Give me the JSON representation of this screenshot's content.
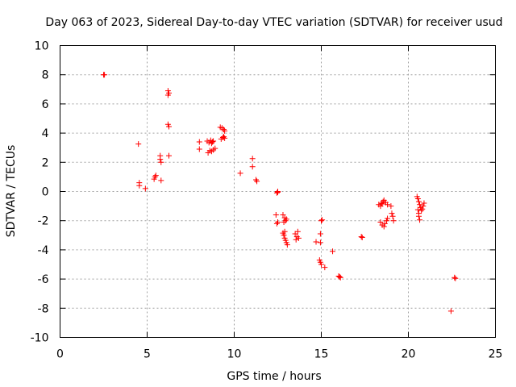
{
  "chart_data": {
    "type": "scatter",
    "title": "Day 063 of 2023, Sidereal Day-to-day VTEC variation (SDTVAR) for receiver usud",
    "xlabel": "GPS time / hours",
    "ylabel": "SDTVAR / TECUs",
    "xlim": [
      0,
      25
    ],
    "ylim": [
      -10,
      10
    ],
    "x_ticks": [
      0,
      5,
      10,
      15,
      20,
      25
    ],
    "y_ticks": [
      -10,
      -8,
      -6,
      -4,
      -2,
      0,
      2,
      4,
      6,
      8,
      10
    ],
    "x_tick_labels": [
      "0",
      "5",
      "10",
      "15",
      "20",
      "25"
    ],
    "y_tick_labels": [
      "-10",
      "-8",
      "-6",
      "-4",
      "-2",
      "0",
      "2",
      "4",
      "6",
      "8",
      "10"
    ],
    "grid": true,
    "marker": "plus",
    "series": [
      {
        "name": "SDTVAR",
        "color": "#ff0000",
        "points": [
          [
            2.5,
            8.0
          ],
          [
            2.55,
            8.0
          ],
          [
            4.5,
            3.25
          ],
          [
            4.55,
            0.6
          ],
          [
            4.55,
            0.4
          ],
          [
            4.9,
            0.2
          ],
          [
            5.4,
            0.85
          ],
          [
            5.45,
            1.0
          ],
          [
            5.5,
            1.1
          ],
          [
            5.75,
            2.45
          ],
          [
            5.75,
            2.2
          ],
          [
            5.8,
            2.0
          ],
          [
            5.8,
            0.75
          ],
          [
            6.2,
            6.9
          ],
          [
            6.2,
            6.6
          ],
          [
            6.25,
            6.75
          ],
          [
            6.2,
            4.6
          ],
          [
            6.25,
            4.45
          ],
          [
            6.25,
            2.45
          ],
          [
            8.0,
            3.4
          ],
          [
            8.0,
            2.9
          ],
          [
            8.45,
            3.45
          ],
          [
            8.55,
            3.35
          ],
          [
            8.65,
            3.5
          ],
          [
            8.7,
            3.3
          ],
          [
            8.75,
            3.4
          ],
          [
            8.8,
            3.45
          ],
          [
            8.5,
            2.65
          ],
          [
            8.6,
            2.8
          ],
          [
            8.7,
            2.75
          ],
          [
            8.8,
            2.85
          ],
          [
            8.9,
            2.95
          ],
          [
            9.2,
            4.4
          ],
          [
            9.3,
            4.35
          ],
          [
            9.4,
            4.25
          ],
          [
            9.45,
            4.15
          ],
          [
            9.25,
            3.6
          ],
          [
            9.35,
            3.7
          ],
          [
            9.4,
            3.75
          ],
          [
            9.45,
            3.65
          ],
          [
            10.35,
            1.25
          ],
          [
            11.05,
            2.25
          ],
          [
            11.05,
            1.7
          ],
          [
            11.25,
            0.8
          ],
          [
            11.3,
            0.7
          ],
          [
            12.45,
            -0.1
          ],
          [
            12.5,
            0.0
          ],
          [
            12.5,
            -0.05
          ],
          [
            12.4,
            -1.6
          ],
          [
            12.45,
            -2.2
          ],
          [
            12.5,
            -2.1
          ],
          [
            12.8,
            -1.6
          ],
          [
            12.9,
            -1.8
          ],
          [
            13.0,
            -1.9
          ],
          [
            12.85,
            -2.1
          ],
          [
            12.95,
            -2.0
          ],
          [
            12.8,
            -2.85
          ],
          [
            12.85,
            -3.0
          ],
          [
            12.9,
            -3.2
          ],
          [
            12.95,
            -3.35
          ],
          [
            13.0,
            -3.5
          ],
          [
            13.05,
            -3.65
          ],
          [
            12.9,
            -2.75
          ],
          [
            13.5,
            -2.9
          ],
          [
            13.6,
            -3.1
          ],
          [
            13.65,
            -2.75
          ],
          [
            13.7,
            -3.2
          ],
          [
            13.55,
            -3.3
          ],
          [
            14.7,
            -3.45
          ],
          [
            14.95,
            -3.5
          ],
          [
            15.0,
            -2.0
          ],
          [
            15.05,
            -1.95
          ],
          [
            14.95,
            -2.9
          ],
          [
            14.9,
            -4.7
          ],
          [
            14.95,
            -4.85
          ],
          [
            15.0,
            -5.0
          ],
          [
            15.2,
            -5.2
          ],
          [
            15.65,
            -4.1
          ],
          [
            16.0,
            -5.8
          ],
          [
            16.05,
            -5.85
          ],
          [
            16.1,
            -5.9
          ],
          [
            17.3,
            -3.1
          ],
          [
            17.35,
            -3.15
          ],
          [
            18.3,
            -0.9
          ],
          [
            18.4,
            -1.0
          ],
          [
            18.5,
            -0.85
          ],
          [
            18.55,
            -0.7
          ],
          [
            18.6,
            -0.6
          ],
          [
            18.7,
            -0.75
          ],
          [
            18.8,
            -0.9
          ],
          [
            18.45,
            -0.8
          ],
          [
            18.4,
            -2.1
          ],
          [
            18.5,
            -2.3
          ],
          [
            18.6,
            -2.4
          ],
          [
            18.65,
            -2.2
          ],
          [
            18.75,
            -2.0
          ],
          [
            18.8,
            -1.85
          ],
          [
            19.0,
            -1.0
          ],
          [
            19.05,
            -1.5
          ],
          [
            19.1,
            -1.7
          ],
          [
            19.15,
            -2.0
          ],
          [
            20.5,
            -0.35
          ],
          [
            20.55,
            -0.5
          ],
          [
            20.6,
            -0.7
          ],
          [
            20.65,
            -0.9
          ],
          [
            20.7,
            -1.1
          ],
          [
            20.75,
            -1.3
          ],
          [
            20.8,
            -1.2
          ],
          [
            20.85,
            -1.0
          ],
          [
            20.9,
            -0.8
          ],
          [
            20.6,
            -1.5
          ],
          [
            20.6,
            -1.7
          ],
          [
            20.65,
            -1.95
          ],
          [
            20.55,
            -1.25
          ],
          [
            22.45,
            -8.2
          ],
          [
            22.65,
            -5.9
          ],
          [
            22.7,
            -5.95
          ]
        ]
      }
    ]
  }
}
